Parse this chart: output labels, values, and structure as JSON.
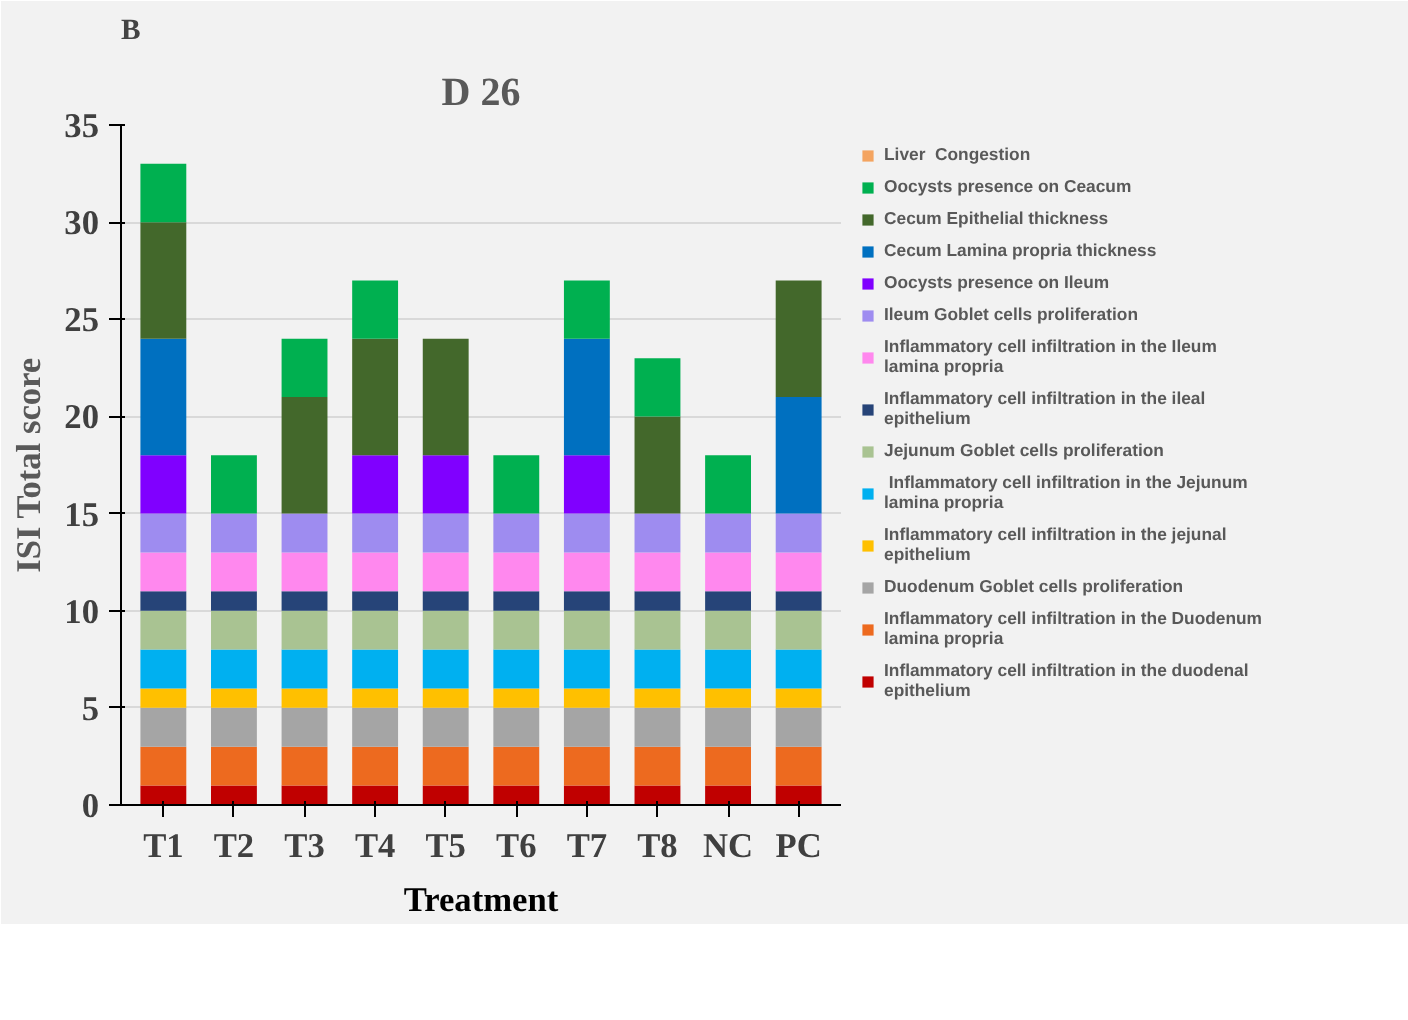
{
  "chart_data": {
    "type": "bar",
    "stacked": true,
    "title": "D 26",
    "xlabel": "Treatment",
    "ylabel": "ISI Total score",
    "annotations": [
      "B"
    ],
    "categories": [
      "T1",
      "T2",
      "T3",
      "T4",
      "T5",
      "T6",
      "T7",
      "T8",
      "NC",
      "PC"
    ],
    "ylim": [
      0,
      35
    ],
    "yticks": [
      0,
      5,
      10,
      15,
      20,
      25,
      30,
      35
    ],
    "grid": "y",
    "legend": "right",
    "series": [
      {
        "name": "Inflammatory cell infiltration in the duodenal epithelium",
        "color": "#c00000",
        "values": [
          1,
          1,
          1,
          1,
          1,
          1,
          1,
          1,
          1,
          1
        ]
      },
      {
        "name": "Inflammatory cell infiltration in the Duodenum lamina propria",
        "color": "#ed6a1f",
        "values": [
          2,
          2,
          2,
          2,
          2,
          2,
          2,
          2,
          2,
          2
        ]
      },
      {
        "name": "Duodenum Goblet cells proliferation",
        "color": "#a5a5a5",
        "values": [
          2,
          2,
          2,
          2,
          2,
          2,
          2,
          2,
          2,
          2
        ]
      },
      {
        "name": "Inflammatory cell infiltration in the jejunal epithelium",
        "color": "#ffc000",
        "values": [
          1,
          1,
          1,
          1,
          1,
          1,
          1,
          1,
          1,
          1
        ]
      },
      {
        "name": " Inflammatory cell infiltration in the Jejunum lamina propria",
        "color": "#00b0f0",
        "values": [
          2,
          2,
          2,
          2,
          2,
          2,
          2,
          2,
          2,
          2
        ]
      },
      {
        "name": "Jejunum Goblet cells proliferation",
        "color": "#a9c392",
        "values": [
          2,
          2,
          2,
          2,
          2,
          2,
          2,
          2,
          2,
          2
        ]
      },
      {
        "name": "Inflammatory cell infiltration in the ileal epithelium",
        "color": "#264478",
        "values": [
          1,
          1,
          1,
          1,
          1,
          1,
          1,
          1,
          1,
          1
        ]
      },
      {
        "name": "Inflammatory cell infiltration in the Ileum lamina propria",
        "color": "#ff88ee",
        "values": [
          2,
          2,
          2,
          2,
          2,
          2,
          2,
          2,
          2,
          2
        ]
      },
      {
        "name": "Ileum Goblet cells proliferation",
        "color": "#9e8cf0",
        "values": [
          2,
          2,
          2,
          2,
          2,
          2,
          2,
          2,
          2,
          2
        ]
      },
      {
        "name": "Oocysts presence on Ileum",
        "color": "#8000ff",
        "values": [
          3,
          0,
          0,
          3,
          3,
          0,
          3,
          0,
          0,
          0
        ]
      },
      {
        "name": "Cecum Lamina propria thickness",
        "color": "#0070c0",
        "values": [
          6,
          0,
          0,
          0,
          0,
          0,
          6,
          0,
          0,
          6
        ]
      },
      {
        "name": "Cecum Epithelial thickness",
        "color": "#43682b",
        "values": [
          6,
          0,
          6,
          6,
          6,
          0,
          0,
          5,
          0,
          6
        ]
      },
      {
        "name": "Oocysts presence on Ceacum",
        "color": "#00b050",
        "values": [
          3,
          3,
          3,
          3,
          0,
          3,
          3,
          3,
          3,
          0
        ]
      },
      {
        "name": "Liver  Congestion",
        "color": "#f4a460",
        "values": [
          0,
          0,
          0,
          0,
          0,
          0,
          0,
          0,
          0,
          0
        ]
      }
    ]
  }
}
